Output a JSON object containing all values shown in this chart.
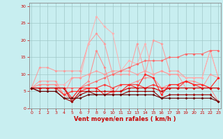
{
  "x": [
    0,
    1,
    2,
    3,
    4,
    5,
    6,
    7,
    8,
    9,
    10,
    11,
    12,
    13,
    14,
    15,
    16,
    17,
    18,
    19,
    20,
    21,
    22,
    23
  ],
  "series": [
    {
      "color": "#FF9999",
      "linewidth": 0.7,
      "markersize": 2.0,
      "y": [
        6,
        12,
        12,
        11,
        11,
        11,
        11,
        19,
        22,
        19,
        10,
        10,
        10,
        19,
        10,
        20,
        19,
        11,
        11,
        9,
        9,
        9,
        17,
        9
      ]
    },
    {
      "color": "#FFB0B0",
      "linewidth": 0.7,
      "markersize": 2.0,
      "y": [
        6,
        7,
        7,
        7,
        7,
        9,
        9,
        19,
        27,
        24,
        22,
        11,
        14,
        13,
        19,
        10,
        11,
        10,
        10,
        9,
        9,
        9,
        17,
        9
      ]
    },
    {
      "color": "#FF9999",
      "linewidth": 0.7,
      "markersize": 2.0,
      "y": [
        6,
        8,
        8,
        8,
        4,
        9,
        9,
        10,
        11,
        10,
        11,
        11,
        11,
        10,
        11,
        10,
        11,
        10,
        10,
        6,
        6,
        6,
        10,
        9
      ]
    },
    {
      "color": "#FF6666",
      "linewidth": 0.7,
      "markersize": 2.0,
      "y": [
        6,
        6,
        6,
        6,
        6,
        6,
        6,
        7,
        8,
        9,
        10,
        11,
        12,
        13,
        14,
        14,
        14,
        15,
        15,
        16,
        16,
        16,
        17,
        17
      ]
    },
    {
      "color": "#FF8888",
      "linewidth": 0.7,
      "markersize": 2.0,
      "y": [
        6,
        7,
        7,
        7,
        4,
        3,
        6,
        8,
        17,
        12,
        4,
        7,
        7,
        8,
        9,
        9,
        6,
        7,
        7,
        8,
        8,
        7,
        6,
        2
      ]
    },
    {
      "color": "#FF3333",
      "linewidth": 0.8,
      "markersize": 2.0,
      "y": [
        6,
        6,
        6,
        6,
        4,
        5,
        5,
        6,
        6,
        7,
        6,
        7,
        7,
        7,
        6,
        7,
        6,
        6,
        6,
        8,
        7,
        6,
        6,
        6
      ]
    },
    {
      "color": "#FF2222",
      "linewidth": 0.8,
      "markersize": 2.0,
      "y": [
        6,
        6,
        6,
        6,
        6,
        3,
        6,
        6,
        6,
        4,
        5,
        5,
        7,
        6,
        10,
        9,
        4,
        7,
        7,
        8,
        7,
        7,
        6,
        9
      ]
    },
    {
      "color": "#CC0000",
      "linewidth": 0.8,
      "markersize": 2.0,
      "y": [
        6,
        6,
        6,
        6,
        6,
        2,
        5,
        5,
        5,
        5,
        5,
        5,
        6,
        6,
        6,
        6,
        5,
        6,
        6,
        6,
        6,
        6,
        6,
        6
      ]
    },
    {
      "color": "#990000",
      "linewidth": 0.8,
      "markersize": 2.0,
      "y": [
        6,
        5,
        5,
        5,
        3,
        2,
        4,
        5,
        4,
        4,
        4,
        4,
        5,
        5,
        5,
        5,
        3,
        4,
        4,
        4,
        4,
        4,
        4,
        2
      ]
    },
    {
      "color": "#660000",
      "linewidth": 0.8,
      "markersize": 2.0,
      "y": [
        6,
        5,
        5,
        5,
        3,
        3,
        3,
        4,
        4,
        4,
        4,
        4,
        4,
        4,
        4,
        4,
        3,
        3,
        3,
        3,
        3,
        3,
        3,
        2
      ]
    }
  ],
  "background_color": "#C8EEF0",
  "grid_color": "#A0C8C8",
  "xlabel": "Vent moyen/en rafales ( km/h )",
  "ylabel_ticks": [
    0,
    5,
    10,
    15,
    20,
    25,
    30
  ],
  "xticks": [
    0,
    1,
    2,
    3,
    4,
    5,
    6,
    7,
    8,
    9,
    10,
    11,
    12,
    13,
    14,
    15,
    16,
    17,
    18,
    19,
    20,
    21,
    22,
    23
  ],
  "xlim": [
    -0.3,
    23.3
  ],
  "ylim": [
    0,
    31
  ],
  "tick_color": "#CC0000",
  "label_color": "#CC0000",
  "spine_color": "#888888",
  "tick_fontsize": 4.5,
  "xlabel_fontsize": 6.0
}
